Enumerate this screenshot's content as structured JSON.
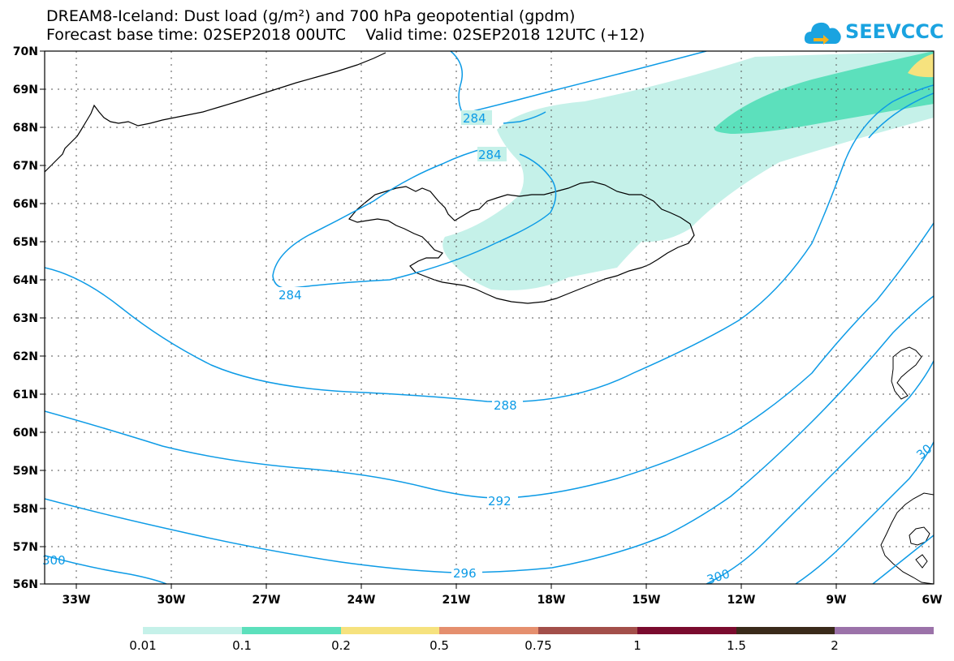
{
  "header": {
    "title_line1": "DREAM8-Iceland: Dust load (g/m²) and 700 hPa geopotential (gpdm)",
    "title_line2": "Forecast base time: 02SEP2018 00UTC    Valid time: 02SEP2018 12UTC (+12)"
  },
  "logo": {
    "text": "SEEVCCC"
  },
  "map": {
    "lat_labels": [
      "70N",
      "69N",
      "68N",
      "67N",
      "66N",
      "65N",
      "64N",
      "63N",
      "62N",
      "61N",
      "60N",
      "59N",
      "58N",
      "57N",
      "56N"
    ],
    "lon_labels": [
      "33W",
      "30W",
      "27W",
      "24W",
      "21W",
      "18W",
      "15W",
      "12W",
      "9W",
      "6W"
    ],
    "contour_labels": [
      "284",
      "284",
      "284",
      "288",
      "292",
      "296",
      "300",
      "300",
      "30"
    ]
  },
  "colorbar": {
    "labels": [
      "0.01",
      "0.1",
      "0.2",
      "0.5",
      "0.75",
      "1",
      "1.5",
      "2"
    ],
    "colors": [
      "#c5f1e9",
      "#5ce0bc",
      "#f6e27e",
      "#e58f6e",
      "#a34f4a",
      "#7a0b2e",
      "#3a2a1a",
      "#9b72a9"
    ]
  },
  "colors": {
    "contour": "#0d9be6",
    "dust_low": "#c5f1e9",
    "dust_mid": "#5ce0bc",
    "dust_high": "#f6e27e"
  }
}
